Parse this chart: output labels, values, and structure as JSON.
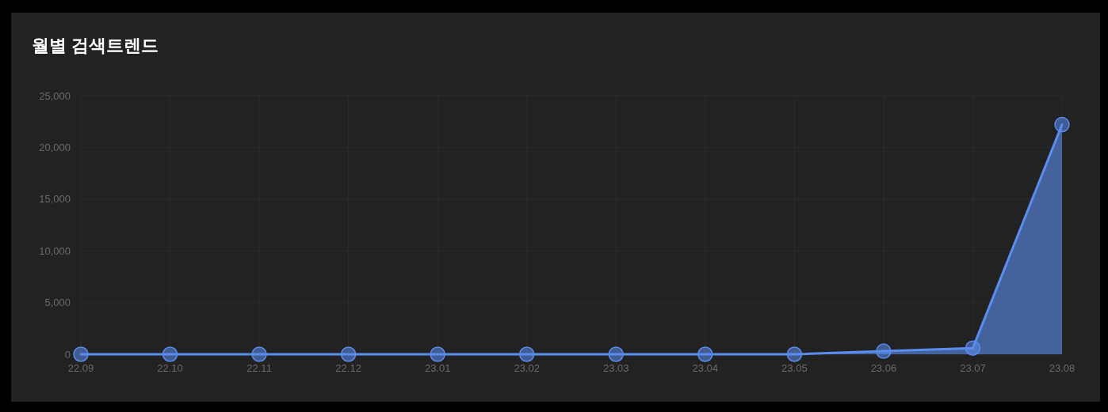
{
  "chart_data": {
    "type": "area",
    "title": "월별 검색트렌드",
    "categories": [
      "22.09",
      "22.10",
      "22.11",
      "22.12",
      "23.01",
      "23.02",
      "23.03",
      "23.04",
      "23.05",
      "23.06",
      "23.07",
      "23.08"
    ],
    "series": [
      {
        "color": "#5b8def",
        "values": [
          0,
          0,
          0,
          0,
          0,
          0,
          0,
          0,
          0,
          300,
          600,
          22200
        ]
      }
    ],
    "ylim": [
      0,
      25000
    ],
    "yticks": [
      {
        "value": 0,
        "label": "0"
      },
      {
        "value": 5000,
        "label": "5,000"
      },
      {
        "value": 10000,
        "label": "10,000"
      },
      {
        "value": 15000,
        "label": "15,000"
      },
      {
        "value": 20000,
        "label": "20,000"
      },
      {
        "value": 25000,
        "label": "25,000"
      }
    ],
    "grid": true,
    "marker": "circle"
  }
}
